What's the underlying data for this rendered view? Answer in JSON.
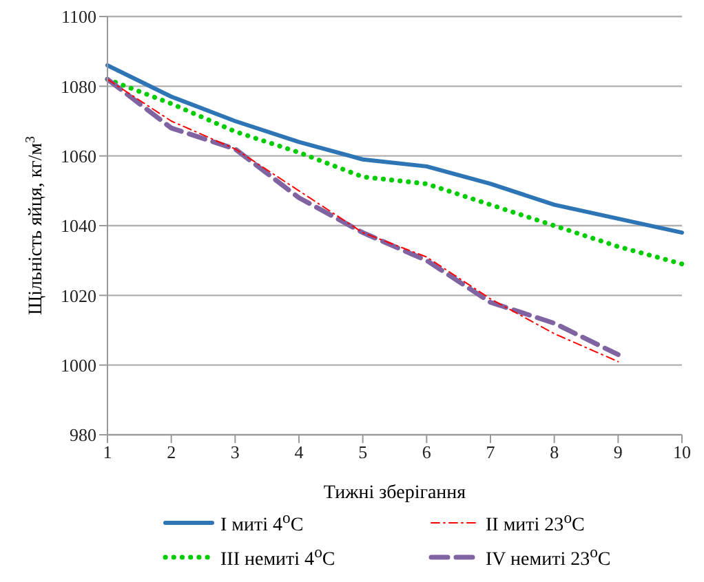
{
  "chart_data": {
    "type": "line",
    "xlabel": "Тижні зберігання",
    "ylabel": "Щільність яйця, кг/м$^{3}$",
    "categories": [
      "1",
      "2",
      "3",
      "4",
      "5",
      "6",
      "7",
      "8",
      "9",
      "10"
    ],
    "ylim": [
      980,
      1100
    ],
    "yticks": [
      980,
      1000,
      1020,
      1040,
      1060,
      1080,
      1100
    ],
    "grid": "y",
    "legend": "bottom",
    "marker": "none",
    "series": [
      {
        "name": "I миті 4$^{o}$C",
        "color": "#2e75b6",
        "line_style": "solid",
        "values": [
          1086,
          1077,
          1070,
          1064,
          1059,
          1057,
          1052,
          1046,
          1042,
          1038
        ]
      },
      {
        "name": "II миті 23$^{o}$C",
        "color": "#ff0000",
        "line_style": "dashdot",
        "values": [
          1082,
          1070,
          1062,
          1050,
          1038,
          1031,
          1019,
          1009,
          1001,
          null
        ]
      },
      {
        "name": "III немиті 4$^{o}$C",
        "color": "#00cc00",
        "line_style": "dotted",
        "values": [
          1082,
          1075,
          1067,
          1061,
          1054,
          1052,
          1046,
          1040,
          1034,
          1029
        ]
      },
      {
        "name": "IV немиті 23$^{o}$C",
        "color": "#8064a2",
        "line_style": "dashed",
        "values": [
          1082,
          1068,
          1062,
          1048,
          1038,
          1030,
          1018,
          1012,
          1003,
          null
        ]
      }
    ]
  }
}
